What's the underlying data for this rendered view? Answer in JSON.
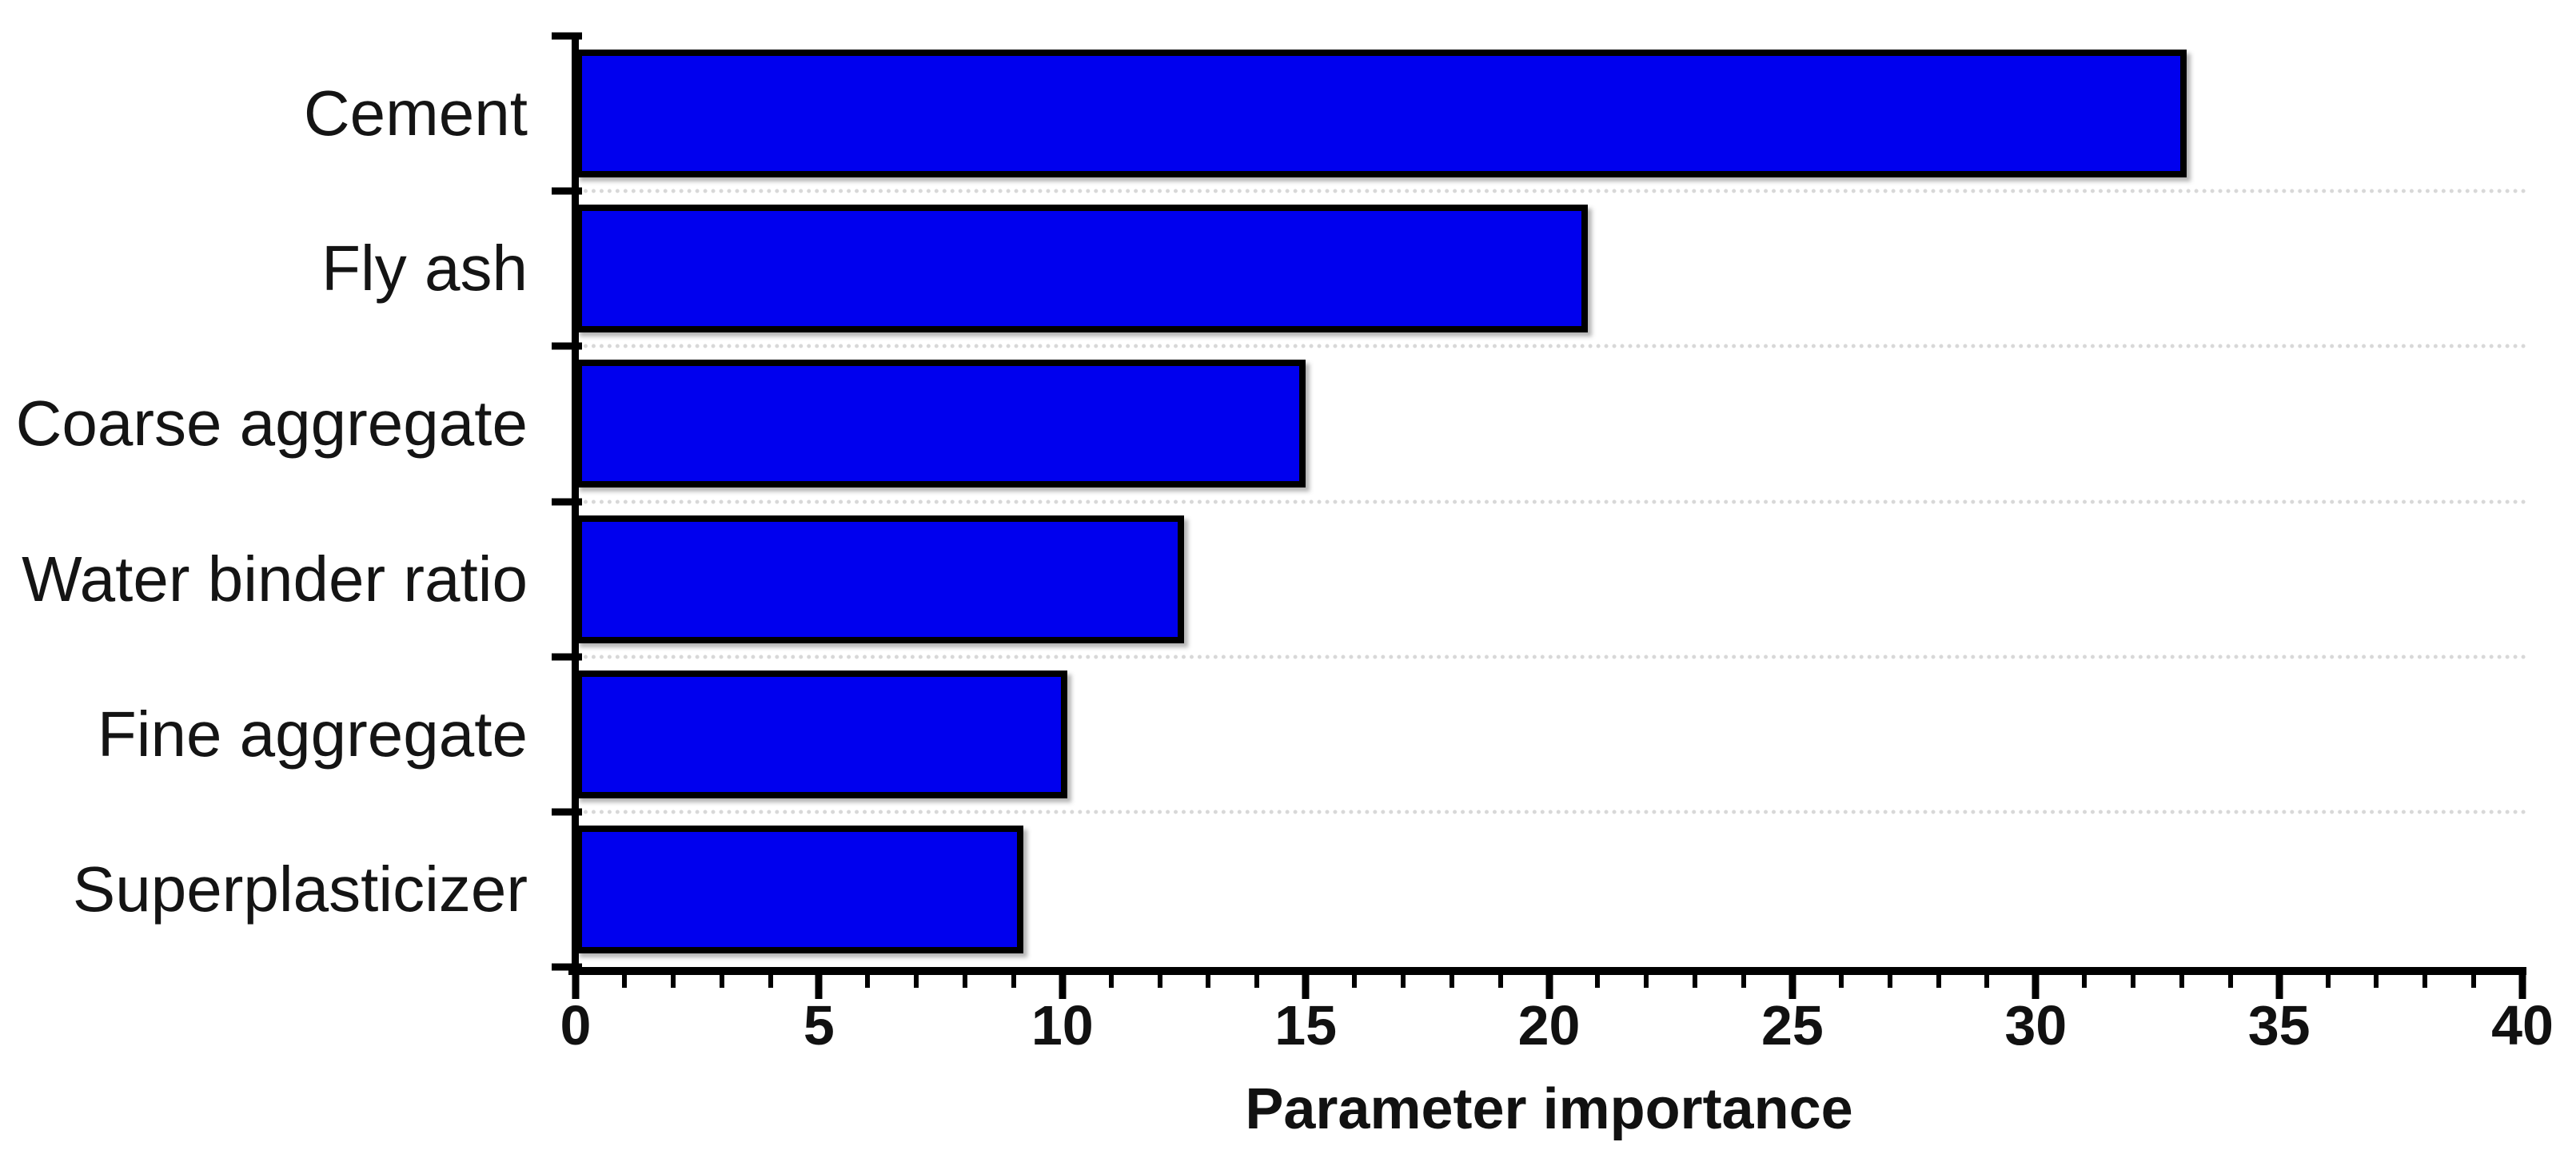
{
  "figure": {
    "background": "#ffffff"
  },
  "chart_data": {
    "type": "bar",
    "orientation": "horizontal",
    "title": "",
    "xlabel": "Parameter importance",
    "ylabel": "",
    "categories": [
      "Cement",
      "Fly ash",
      "Coarse aggregate",
      "Water binder ratio",
      "Fine aggregate",
      "Superplasticizer"
    ],
    "values": [
      33.1,
      20.8,
      15.0,
      12.5,
      10.1,
      9.2
    ],
    "xlim": [
      0,
      40
    ],
    "x_major_ticks": [
      0,
      5,
      10,
      15,
      20,
      25,
      30,
      35,
      40
    ],
    "x_tick_labels": [
      "0",
      "5",
      "10",
      "15",
      "20",
      "25",
      "30",
      "35",
      "40"
    ],
    "x_minor_tick_step": 1,
    "grid": "horizontal-dotted-between-rows",
    "legend": "none",
    "colors": {
      "bar_fill": "#0000EE",
      "bar_border": "#000000",
      "axis": "#000000",
      "gridline": "#d8d8d8",
      "text": "#141414"
    }
  }
}
